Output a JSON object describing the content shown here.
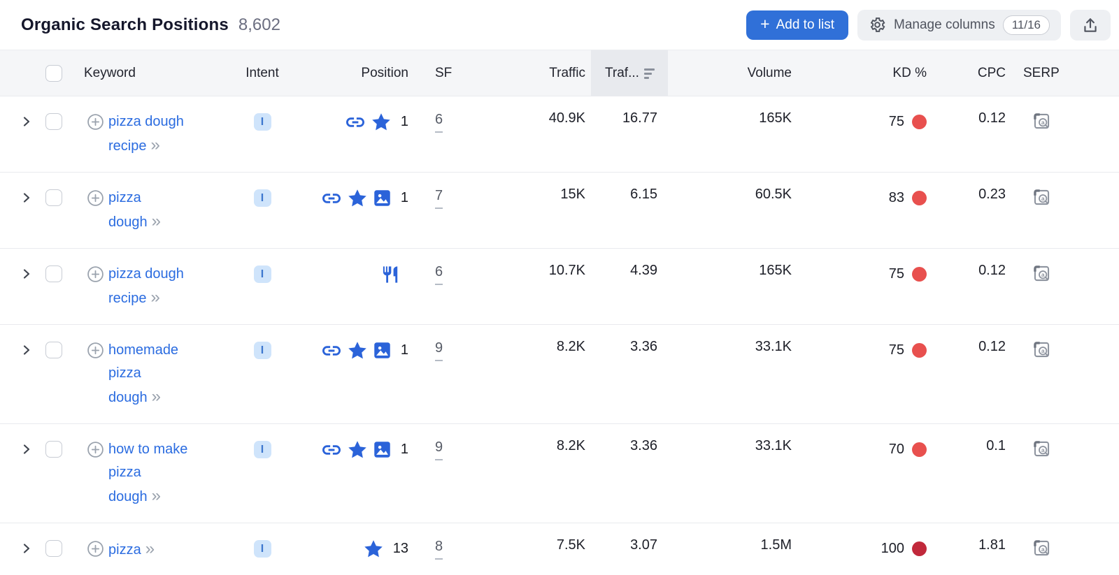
{
  "colors": {
    "link_blue": "#2b6ce0",
    "icon_blue": "#2b63d9",
    "kd_red": "#e8504e",
    "kd_dark_red": "#c1293b"
  },
  "toolbar": {
    "title": "Organic Search Positions",
    "count": "8,602",
    "add_to_list": {
      "plus": "+",
      "label": "Add to list"
    },
    "manage_columns": {
      "label": "Manage columns",
      "badge": "11/16"
    }
  },
  "icons": {
    "keyword_more": "»"
  },
  "table": {
    "headers": {
      "keyword": "Keyword",
      "intent": "Intent",
      "position": "Position",
      "sf": "SF",
      "traffic": "Traffic",
      "traffic_pct": "Traf...",
      "volume": "Volume",
      "kd": "KD %",
      "cpc": "CPC",
      "serp": "SERP"
    },
    "sorted_column": "traffic_pct",
    "rows": [
      {
        "keyword": "pizza dough recipe",
        "keyword_lines": [
          "pizza dough",
          "recipe"
        ],
        "intent": "I",
        "position_icons": [
          "link",
          "star"
        ],
        "position": "1",
        "sf": "6",
        "traffic": "40.9K",
        "traffic_pct": "16.77",
        "volume": "165K",
        "kd": "75",
        "kd_color": "#e8504e",
        "cpc": "0.12"
      },
      {
        "keyword": "pizza dough",
        "keyword_lines": [
          "pizza",
          "dough"
        ],
        "intent": "I",
        "position_icons": [
          "link",
          "star",
          "image"
        ],
        "position": "1",
        "sf": "7",
        "traffic": "15K",
        "traffic_pct": "6.15",
        "volume": "60.5K",
        "kd": "83",
        "kd_color": "#e8504e",
        "cpc": "0.23"
      },
      {
        "keyword": "pizza dough recipe",
        "keyword_lines": [
          "pizza dough",
          "recipe"
        ],
        "intent": "I",
        "position_icons": [
          "fork-knife"
        ],
        "position": "",
        "sf": "6",
        "traffic": "10.7K",
        "traffic_pct": "4.39",
        "volume": "165K",
        "kd": "75",
        "kd_color": "#e8504e",
        "cpc": "0.12"
      },
      {
        "keyword": "homemade pizza dough",
        "keyword_lines": [
          "homemade",
          "pizza",
          "dough"
        ],
        "intent": "I",
        "position_icons": [
          "link",
          "star",
          "image"
        ],
        "position": "1",
        "sf": "9",
        "traffic": "8.2K",
        "traffic_pct": "3.36",
        "volume": "33.1K",
        "kd": "75",
        "kd_color": "#e8504e",
        "cpc": "0.12"
      },
      {
        "keyword": "how to make pizza dough",
        "keyword_lines": [
          "how to make",
          "pizza",
          "dough"
        ],
        "intent": "I",
        "position_icons": [
          "link",
          "star",
          "image"
        ],
        "position": "1",
        "sf": "9",
        "traffic": "8.2K",
        "traffic_pct": "3.36",
        "volume": "33.1K",
        "kd": "70",
        "kd_color": "#e8504e",
        "cpc": "0.1"
      },
      {
        "keyword": "pizza",
        "keyword_lines": [
          "pizza"
        ],
        "intent": "I",
        "position_icons": [
          "star"
        ],
        "position": "13",
        "sf": "8",
        "traffic": "7.5K",
        "traffic_pct": "3.07",
        "volume": "1.5M",
        "kd": "100",
        "kd_color": "#c1293b",
        "cpc": "1.81"
      }
    ]
  }
}
